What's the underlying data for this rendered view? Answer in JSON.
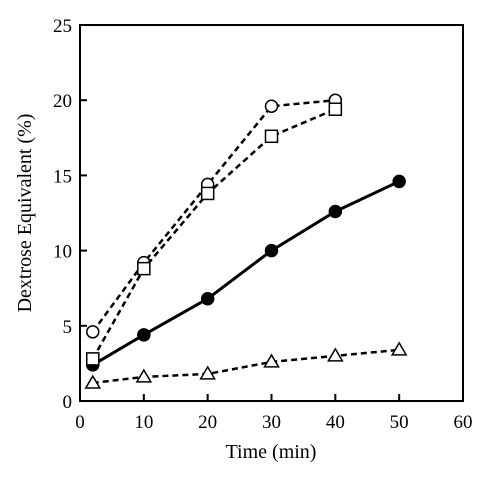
{
  "chart_data": {
    "type": "line",
    "xlabel": "Time (min)",
    "ylabel": "Dextrose Equivalent  (%)",
    "xlim": [
      0,
      60
    ],
    "ylim": [
      0,
      25
    ],
    "xticks": [
      0,
      10,
      20,
      30,
      40,
      50,
      60
    ],
    "yticks": [
      0,
      5,
      10,
      15,
      20,
      25
    ],
    "grid": false,
    "series": [
      {
        "marker": "filled-circle",
        "line": "solid",
        "x": [
          2,
          10,
          20,
          30,
          40,
          50
        ],
        "y": [
          2.4,
          4.4,
          6.8,
          10.0,
          12.6,
          14.6
        ]
      },
      {
        "marker": "open-circle",
        "line": "dashed",
        "x": [
          2,
          10,
          20,
          30,
          40
        ],
        "y": [
          4.6,
          9.2,
          14.4,
          19.6,
          20.0
        ]
      },
      {
        "marker": "open-square",
        "line": "dashed",
        "x": [
          2,
          10,
          20,
          30,
          40
        ],
        "y": [
          2.8,
          8.8,
          13.8,
          17.6,
          19.4
        ]
      },
      {
        "marker": "open-triangle",
        "line": "dashed",
        "x": [
          2,
          10,
          20,
          30,
          40,
          50
        ],
        "y": [
          1.2,
          1.6,
          1.8,
          2.6,
          3.0,
          3.4
        ]
      }
    ]
  }
}
